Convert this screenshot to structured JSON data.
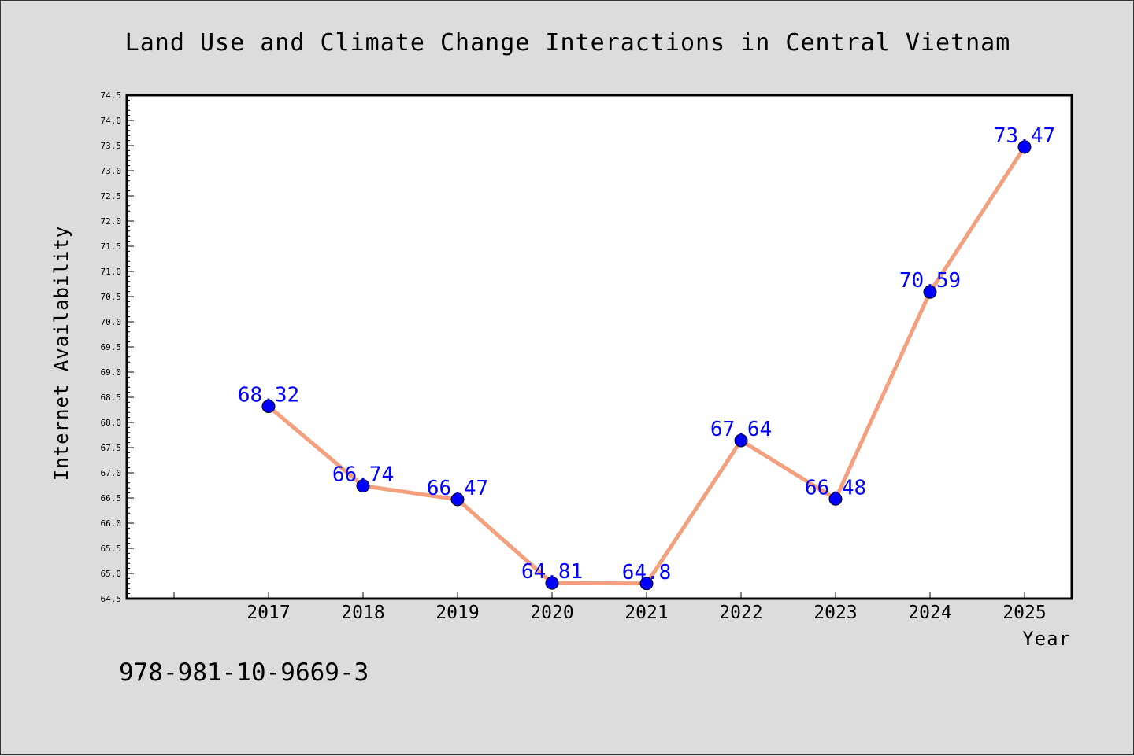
{
  "chart_data": {
    "type": "line",
    "title": "Land Use and Climate Change Interactions in Central Vietnam",
    "xlabel": "Year",
    "ylabel": "Internet Availability",
    "x": [
      "2017",
      "2018",
      "2019",
      "2020",
      "2021",
      "2022",
      "2023",
      "2024",
      "2025"
    ],
    "series": [
      {
        "values": [
          68.32,
          66.74,
          66.47,
          64.81,
          64.8,
          67.64,
          66.48,
          70.59,
          73.47
        ],
        "data_labels": [
          "68.32",
          "66.74",
          "66.47",
          "64.81",
          "64.8",
          "67.64",
          "66.48",
          "70.59",
          "73.47"
        ],
        "line_color": "#f4a07e",
        "marker_color": "#0000ff"
      }
    ],
    "ylim": [
      64.5,
      74.5
    ],
    "ytick_labels": [
      "64.5",
      "65.0",
      "65.5",
      "66.0",
      "66.5",
      "67.0",
      "67.5",
      "68.0",
      "68.5",
      "69.0",
      "69.5",
      "70.0",
      "70.5",
      "71.0",
      "71.5",
      "72.0",
      "72.5",
      "73.0",
      "73.5",
      "74.0",
      "74.5"
    ],
    "grid": false,
    "legend": "none",
    "data_label_color": "#0000ff",
    "background_color": "#dcdcdc",
    "plot_background_color": "#ffffff"
  },
  "footer": {
    "isbn": "978-981-10-9669-3"
  }
}
